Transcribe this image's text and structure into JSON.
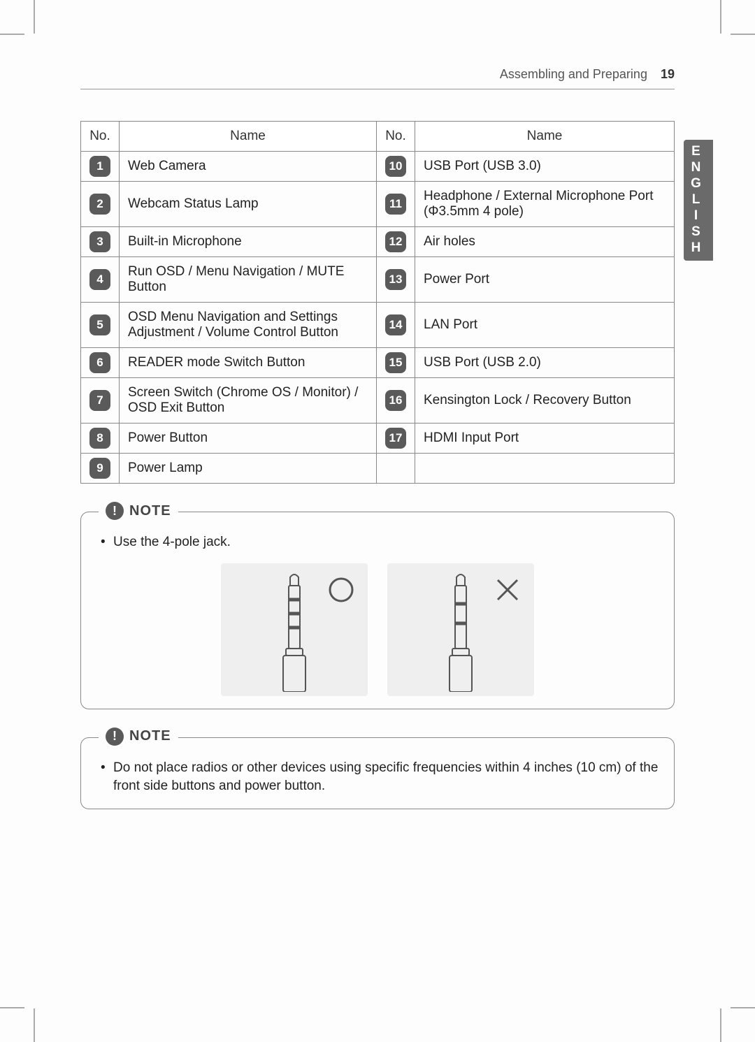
{
  "header": {
    "section": "Assembling and Preparing",
    "page_number": "19"
  },
  "language_tab": "ENGLISH",
  "table": {
    "headers": {
      "no": "No.",
      "name": "Name"
    },
    "left": [
      {
        "n": "1",
        "name": "Web Camera"
      },
      {
        "n": "2",
        "name": "Webcam Status Lamp"
      },
      {
        "n": "3",
        "name": "Built-in Microphone"
      },
      {
        "n": "4",
        "name": "Run OSD / Menu Navigation / MUTE Button"
      },
      {
        "n": "5",
        "name": "OSD Menu Navigation and Settings Adjustment / Volume Control Button"
      },
      {
        "n": "6",
        "name": "READER mode Switch Button"
      },
      {
        "n": "7",
        "name": "Screen Switch (Chrome OS / Monitor) / OSD Exit Button"
      },
      {
        "n": "8",
        "name": "Power Button"
      },
      {
        "n": "9",
        "name": "Power Lamp"
      }
    ],
    "right": [
      {
        "n": "10",
        "name": "USB Port (USB 3.0)"
      },
      {
        "n": "11",
        "name": "Headphone / External Microphone Port (Φ3.5mm 4 pole)"
      },
      {
        "n": "12",
        "name": "Air holes"
      },
      {
        "n": "13",
        "name": "Power Port"
      },
      {
        "n": "14",
        "name": "LAN Port"
      },
      {
        "n": "15",
        "name": "USB Port (USB 2.0)"
      },
      {
        "n": "16",
        "name": "Kensington Lock / Recovery Button"
      },
      {
        "n": "17",
        "name": "HDMI Input Port"
      },
      {
        "n": "",
        "name": ""
      }
    ]
  },
  "note1": {
    "label": "NOTE",
    "items": [
      "Use the 4-pole jack."
    ],
    "jack_diagram": {
      "correct": {
        "rings": 3,
        "mark": "circle"
      },
      "wrong": {
        "rings": 2,
        "mark": "cross"
      },
      "card_bg": "#efefef",
      "stroke": "#555555"
    }
  },
  "note2": {
    "label": "NOTE",
    "items": [
      "Do not place radios or other devices using specific frequencies within 4 inches (10 cm) of the front side buttons and power button."
    ]
  },
  "colors": {
    "badge_bg": "#5a5a5a",
    "border": "#888888",
    "lang_tab_bg": "#6a6a6a"
  }
}
